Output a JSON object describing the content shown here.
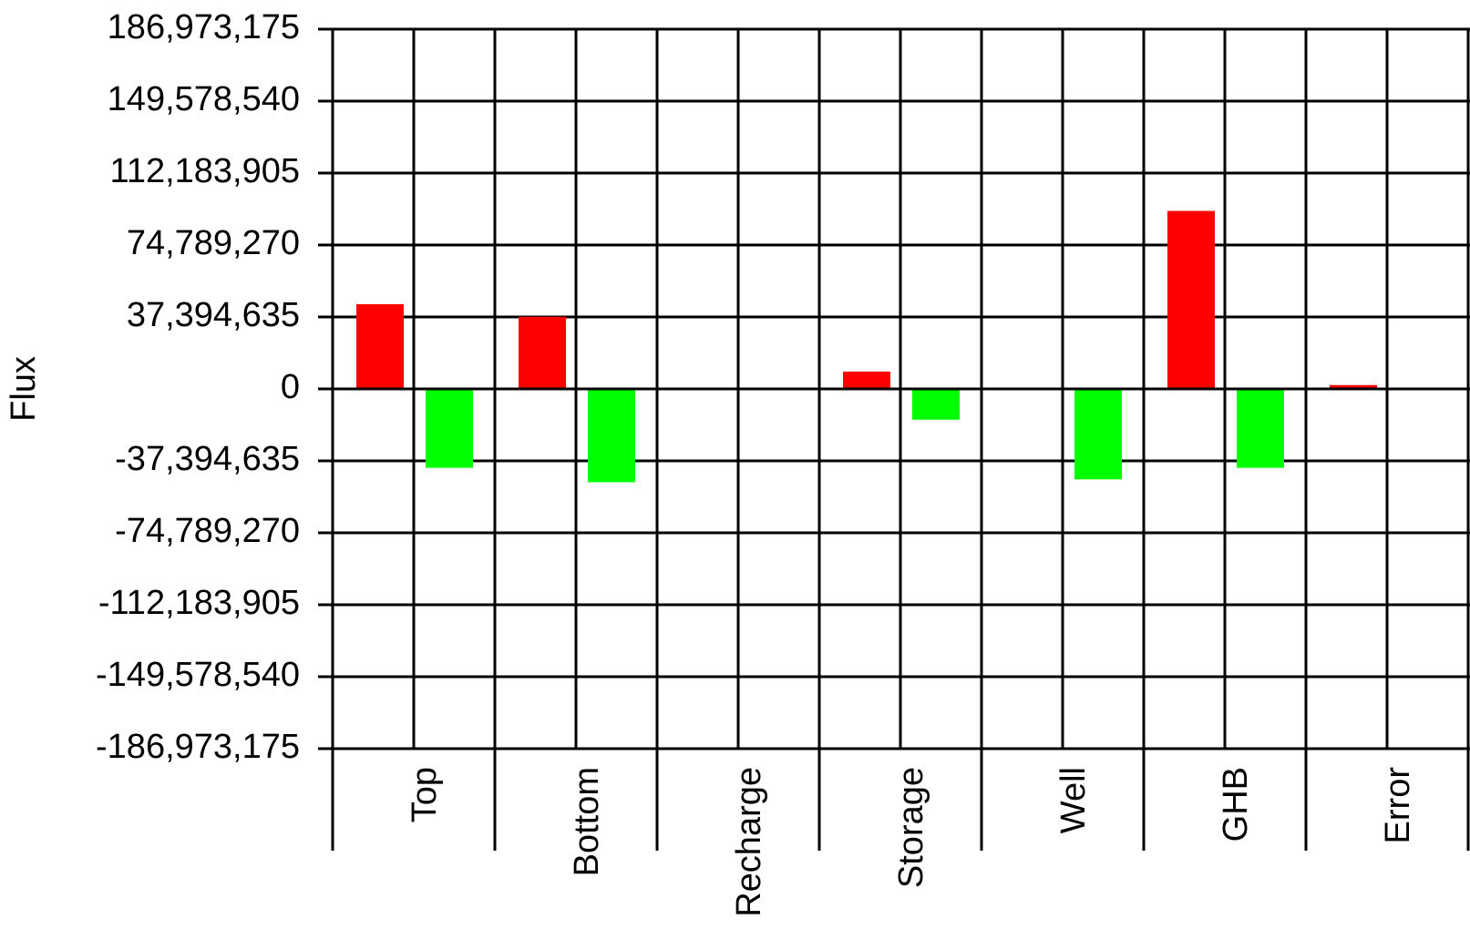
{
  "chart_data": {
    "type": "bar",
    "title": "",
    "xlabel": "",
    "ylabel": "Flux",
    "categories": [
      "Top",
      "Bottom",
      "Recharge",
      "Storage",
      "Well",
      "GHB",
      "Error"
    ],
    "series": [
      {
        "values": [
          44000000,
          37500000,
          0,
          9000000,
          0,
          92500000,
          2000000
        ],
        "color": "#ff0000"
      },
      {
        "values": [
          -41000000,
          -48500000,
          0,
          -16000000,
          -47000000,
          -41000000,
          0
        ],
        "color": "#00ff00"
      }
    ],
    "ylim": [
      -186973175,
      186973175
    ],
    "y_ticks": [
      186973175,
      149578540,
      112183905,
      74789270,
      37394635,
      0,
      -37394635,
      -74789270,
      -112183905,
      -149578540,
      -186973175
    ],
    "y_tick_labels": [
      "186,973,175",
      "149,578,540",
      "112,183,905",
      "74,789,270",
      "37,394,635",
      "0",
      "-37,394,635",
      "-74,789,270",
      "-112,183,905",
      "-149,578,540",
      "-186,973,175"
    ],
    "grid": true,
    "legend": "none"
  }
}
